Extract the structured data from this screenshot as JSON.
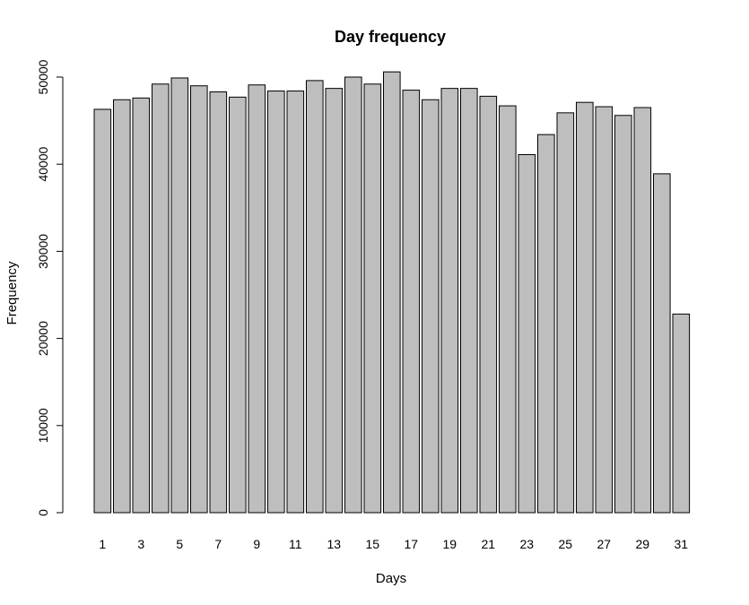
{
  "chart_data": {
    "type": "bar",
    "title": "Day frequency",
    "xlabel": "Days",
    "ylabel": "Frequency",
    "ylim": [
      0,
      52000
    ],
    "yticks": [
      0,
      10000,
      20000,
      30000,
      40000,
      50000
    ],
    "categories": [
      "1",
      "2",
      "3",
      "4",
      "5",
      "6",
      "7",
      "8",
      "9",
      "10",
      "11",
      "12",
      "13",
      "14",
      "15",
      "16",
      "17",
      "18",
      "19",
      "20",
      "21",
      "22",
      "23",
      "24",
      "25",
      "26",
      "27",
      "28",
      "29",
      "30",
      "31"
    ],
    "x_tick_labels_shown": [
      "1",
      "3",
      "5",
      "7",
      "9",
      "11",
      "13",
      "15",
      "17",
      "19",
      "21",
      "23",
      "25",
      "27",
      "29",
      "31"
    ],
    "values": [
      46300,
      47400,
      47600,
      49200,
      49900,
      49000,
      48300,
      47700,
      49100,
      48400,
      48400,
      49600,
      48700,
      50000,
      49200,
      50600,
      48500,
      47400,
      48700,
      48700,
      47800,
      46700,
      41100,
      43400,
      45900,
      47100,
      46600,
      45600,
      46500,
      38900,
      22800
    ],
    "bar_fill": "#bebebe",
    "bar_stroke": "#000000",
    "grid": false,
    "legend": "none"
  }
}
